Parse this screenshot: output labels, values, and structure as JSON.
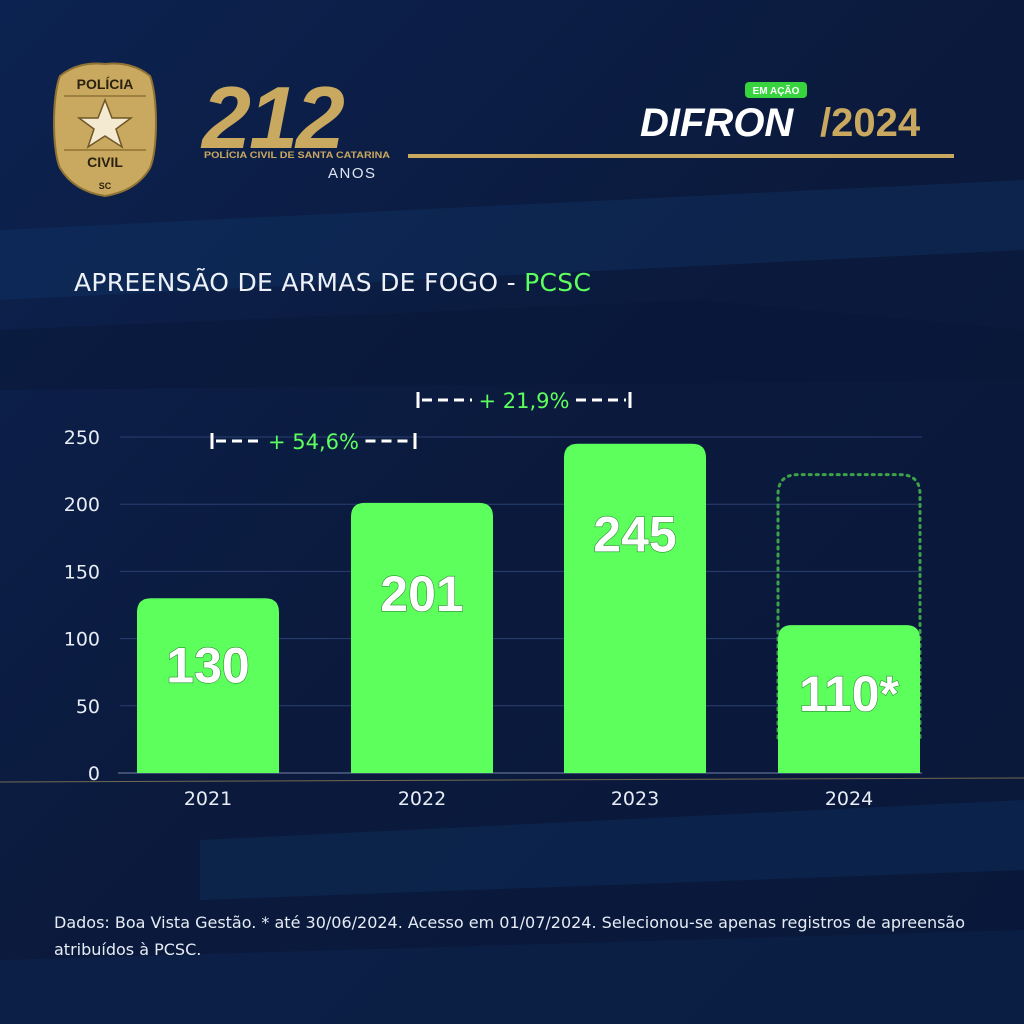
{
  "branding": {
    "badge_top": "POLÍCIA",
    "badge_middle": "CIVIL",
    "badge_bottom": "SC",
    "anniversary_number": "212",
    "anniversary_subtitle": "POLÍCIA CIVIL DE SANTA CATARINA",
    "anniversary_anos": "ANOS",
    "program_tag": "EM AÇÃO",
    "program_name": "DIFRON",
    "program_year": "/2024"
  },
  "chart_data": {
    "type": "bar",
    "title": "APREENSÃO DE ARMAS DE FOGO - ",
    "title_accent": "PCSC",
    "categories": [
      "2021",
      "2022",
      "2023",
      "2024"
    ],
    "values": [
      130,
      201,
      245,
      110
    ],
    "value_labels": [
      "130",
      "201",
      "245",
      "110*"
    ],
    "ylim": [
      0,
      250
    ],
    "yticks": [
      0,
      50,
      100,
      150,
      200,
      250
    ],
    "grid": true,
    "bar_color": "#5dff5d",
    "annotations": [
      {
        "from": "2021",
        "to": "2022",
        "text": "+ 54,6%"
      },
      {
        "from": "2022",
        "to": "2023",
        "text": "+ 21,9%"
      }
    ],
    "projection_outline": {
      "category": "2024",
      "color": "#3da24a"
    }
  },
  "footnote": "Dados: Boa Vista Gestão. * até 30/06/2024. Acesso em 01/07/2024. Selecionou-se apenas registros de apreensão atribuídos à PCSC.",
  "colors": {
    "background": "#0b1a3c",
    "accent_green": "#5dff5d",
    "gold": "#c9a95f",
    "text": "#eef2f8"
  }
}
